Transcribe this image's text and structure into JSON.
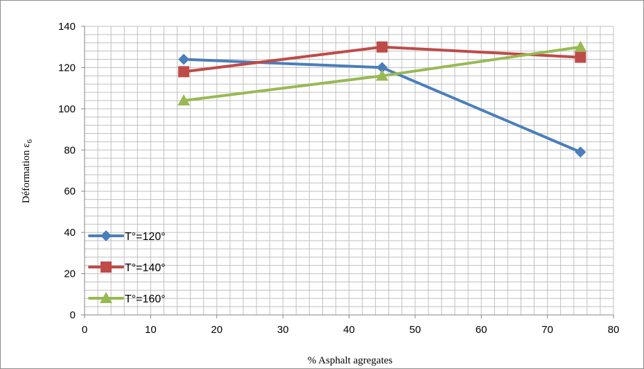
{
  "chart_data": {
    "type": "line",
    "title": "",
    "xlabel": "% Asphalt agregates",
    "ylabel": "Déformation ε",
    "ylabel_sub": "6",
    "xlim": [
      0,
      80
    ],
    "ylim": [
      0,
      140
    ],
    "x_ticks": [
      0,
      10,
      20,
      30,
      40,
      50,
      60,
      70,
      80
    ],
    "y_ticks": [
      0,
      20,
      40,
      60,
      80,
      100,
      120,
      140
    ],
    "x_minor_step": 2,
    "y_minor_step": 4,
    "grid": true,
    "legend_position": "bottom-left",
    "series": [
      {
        "name": "T°=120°",
        "color": "#4a7ebb",
        "marker": "diamond",
        "x": [
          15,
          45,
          75
        ],
        "y": [
          124,
          120,
          79
        ]
      },
      {
        "name": "T°=140°",
        "color": "#be4b48",
        "marker": "square",
        "x": [
          15,
          45,
          75
        ],
        "y": [
          118,
          130,
          125
        ]
      },
      {
        "name": "T°=160°",
        "color": "#98b954",
        "marker": "triangle",
        "x": [
          15,
          45,
          75
        ],
        "y": [
          104,
          116,
          130
        ]
      }
    ]
  }
}
